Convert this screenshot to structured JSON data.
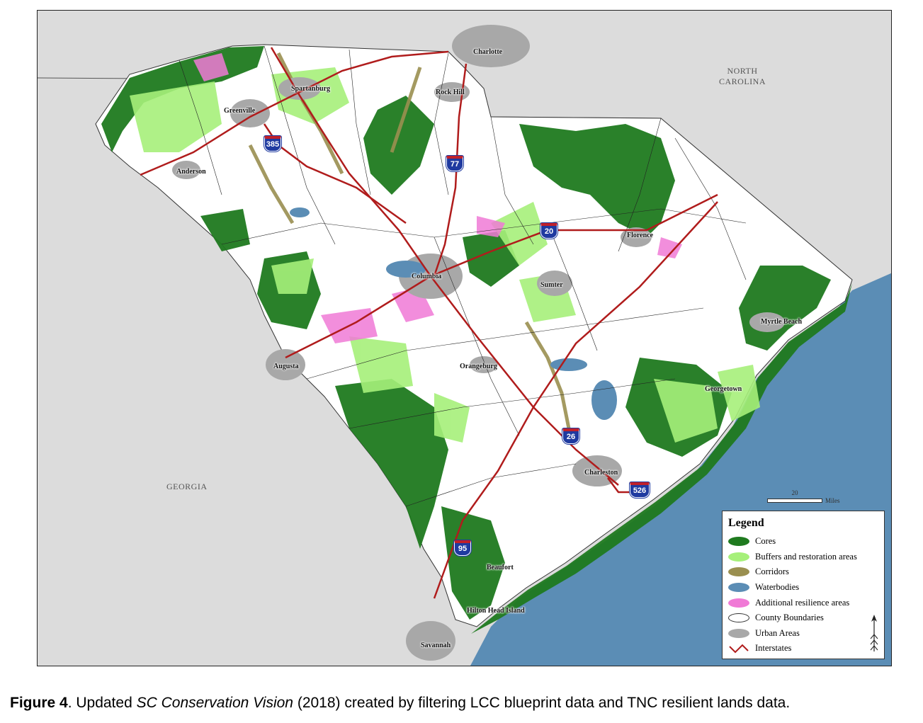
{
  "caption": {
    "label": "Figure 4",
    "text_a": ". Updated ",
    "italic": "SC Conservation Vision",
    "text_b": " (2018) created by filtering LCC blueprint data and TNC resilient lands data."
  },
  "regions": {
    "north_carolina_1": "NORTH",
    "north_carolina_2": "CAROLINA",
    "georgia": "GEORGIA"
  },
  "cities": {
    "charlotte": "Charlotte",
    "rock_hill": "Rock Hill",
    "spartanburg": "Spartanburg",
    "greenville": "Greenville",
    "anderson": "Anderson",
    "florence": "Florence",
    "columbia": "Columbia",
    "sumter": "Sumter",
    "myrtle_beach": "Myrtle Beach",
    "augusta": "Augusta",
    "orangeburg": "Orangeburg",
    "georgetown": "Georgetown",
    "charleston": "Charleston",
    "beaufort": "Beaufort",
    "hilton_head": "Hilton Head Island",
    "savannah": "Savannah"
  },
  "interstates": {
    "i385": "385",
    "i77": "77",
    "i20": "20",
    "i26": "26",
    "i526": "526",
    "i95": "95"
  },
  "scale": {
    "value": "20",
    "unit": "Miles"
  },
  "legend": {
    "title": "Legend",
    "items": [
      {
        "label": "Cores",
        "color": "#1f7a1f"
      },
      {
        "label": "Buffers and restoration areas",
        "color": "#a6f07a"
      },
      {
        "label": "Corridors",
        "color": "#9a8f50"
      },
      {
        "label": "Waterbodies",
        "color": "#5b8db5"
      },
      {
        "label": "Additional resilience areas",
        "color": "#f07ad6"
      },
      {
        "label": "County Boundaries",
        "color": "#ffffff"
      },
      {
        "label": "Urban Areas",
        "color": "#a8a8a8"
      },
      {
        "label": "Interstates",
        "color": "#b01c1c"
      }
    ]
  }
}
